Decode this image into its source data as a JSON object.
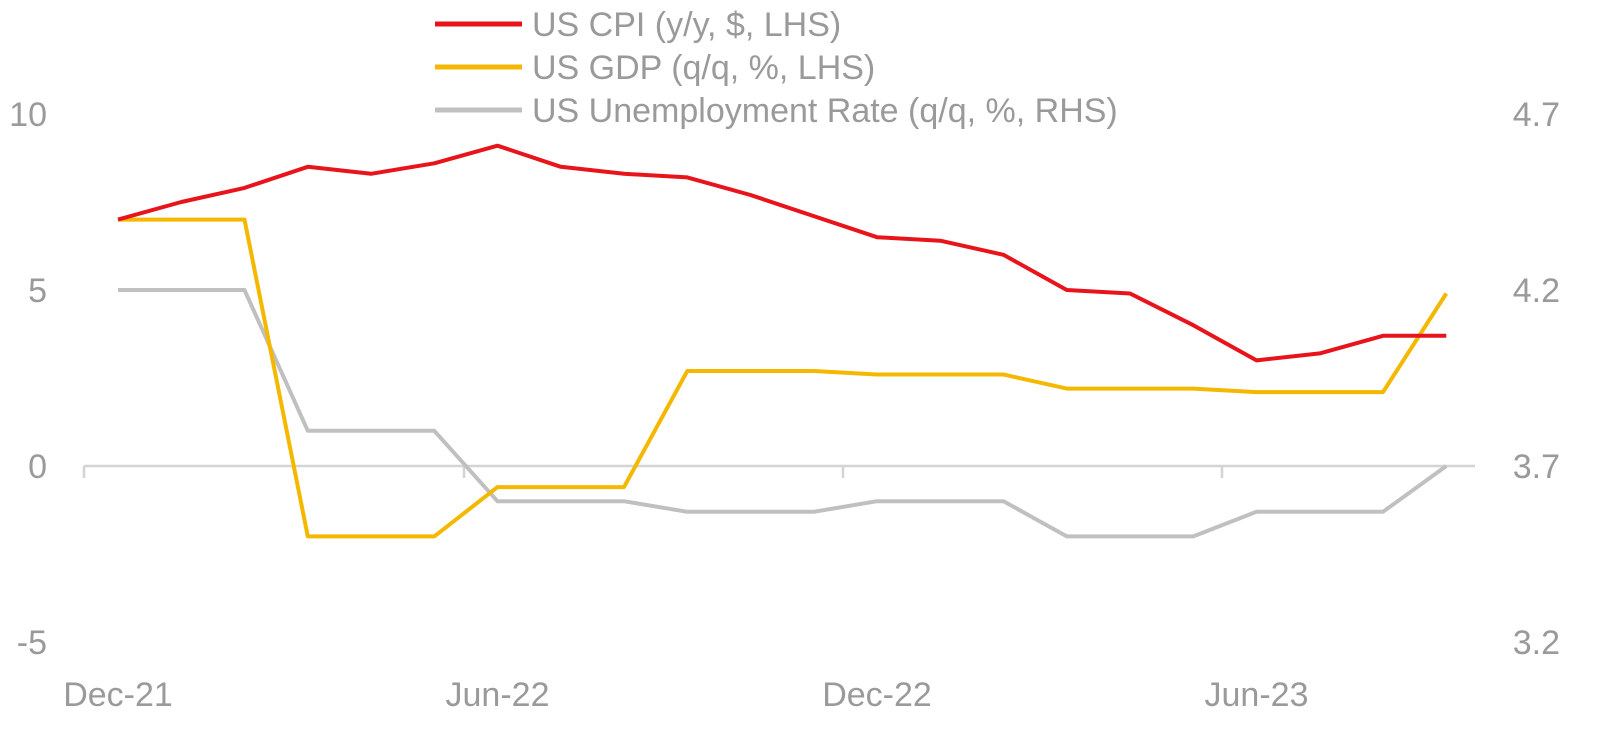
{
  "chart_data": {
    "type": "line",
    "x": [
      "Dec-21",
      "Jan-22",
      "Feb-22",
      "Mar-22",
      "Apr-22",
      "May-22",
      "Jun-22",
      "Jul-22",
      "Aug-22",
      "Sep-22",
      "Oct-22",
      "Nov-22",
      "Dec-22",
      "Jan-23",
      "Feb-23",
      "Mar-23",
      "Apr-23",
      "May-23",
      "Jun-23",
      "Jul-23",
      "Aug-23",
      "Sep-23"
    ],
    "x_tick_labels": [
      "Dec-21",
      "Jun-22",
      "Dec-22",
      "Jun-23"
    ],
    "y_left": {
      "ticks": [
        "10",
        "5",
        "0",
        "-5"
      ],
      "ylim": [
        -5,
        10
      ]
    },
    "y_right": {
      "ticks": [
        "4.7",
        "4.2",
        "3.7",
        "3.2"
      ],
      "ylim": [
        3.2,
        4.7
      ]
    },
    "series": [
      {
        "name": "US CPI (y/y, $, LHS)",
        "axis": "left",
        "color": "#e8141b",
        "values": [
          7.0,
          7.5,
          7.9,
          8.5,
          8.3,
          8.6,
          9.1,
          8.5,
          8.3,
          8.2,
          7.7,
          7.1,
          6.5,
          6.4,
          6.0,
          5.0,
          4.9,
          4.0,
          3.0,
          3.2,
          3.7,
          3.7
        ]
      },
      {
        "name": "US GDP (q/q, %, LHS)",
        "axis": "left",
        "color": "#f5b800",
        "values": [
          7.0,
          7.0,
          7.0,
          -2.0,
          -2.0,
          -2.0,
          -0.6,
          -0.6,
          -0.6,
          2.7,
          2.7,
          2.7,
          2.6,
          2.6,
          2.6,
          2.2,
          2.2,
          2.2,
          2.1,
          2.1,
          2.1,
          4.9
        ]
      },
      {
        "name": "US Unemployment Rate (q/q, %, RHS)",
        "axis": "right",
        "color": "#c0c0c0",
        "values": [
          4.2,
          4.2,
          4.2,
          3.8,
          3.8,
          3.8,
          3.6,
          3.6,
          3.6,
          3.57,
          3.57,
          3.57,
          3.6,
          3.6,
          3.6,
          3.5,
          3.5,
          3.5,
          3.57,
          3.57,
          3.57,
          3.7
        ]
      }
    ],
    "legend_position": "top-center",
    "grid": false
  }
}
